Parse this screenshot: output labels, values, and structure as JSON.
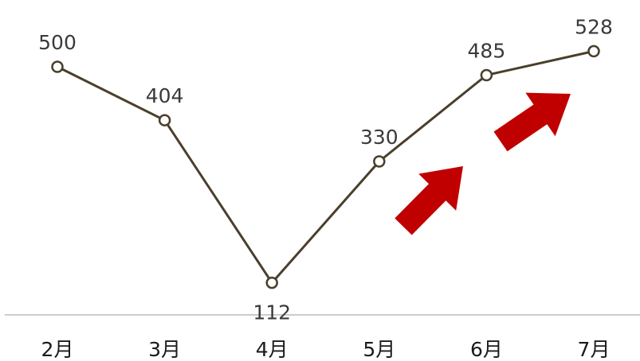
{
  "chart_data": {
    "type": "line",
    "categories": [
      "2月",
      "3月",
      "4月",
      "5月",
      "6月",
      "7月"
    ],
    "series": [
      {
        "values": [
          500,
          404,
          112,
          330,
          485,
          528
        ]
      }
    ],
    "data_labels": [
      "500",
      "404",
      "112",
      "330",
      "485",
      "528"
    ],
    "ylim": [
      60,
      600
    ],
    "grid": false,
    "legend": "none",
    "annotations": [
      {
        "type": "arrow",
        "direction": "up-right",
        "color": "#c00000"
      },
      {
        "type": "arrow",
        "direction": "up-right",
        "color": "#c00000"
      }
    ],
    "colors": {
      "line": "#4a3f2b",
      "marker_fill": "#ffffff",
      "axis": "#9a9a9a",
      "arrow": "#c00000"
    }
  }
}
